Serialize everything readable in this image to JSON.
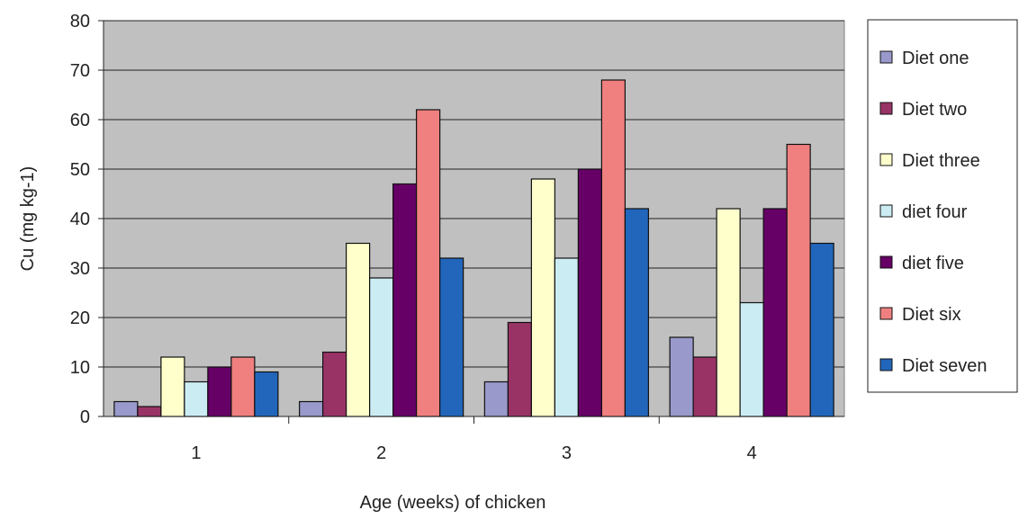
{
  "chart_data": {
    "type": "bar",
    "title": "",
    "xlabel": "Age (weeks) of chicken",
    "ylabel": "Cu (mg kg-1)",
    "ylim": [
      0,
      80
    ],
    "yticks": [
      0,
      10,
      20,
      30,
      40,
      50,
      60,
      70,
      80
    ],
    "categories": [
      "1",
      "2",
      "3",
      "4"
    ],
    "grid": true,
    "legend_position": "right",
    "plot_background": "#c0c0c0",
    "series": [
      {
        "name": "Diet one",
        "color": "#9999cc",
        "values": [
          3,
          3,
          7,
          16
        ]
      },
      {
        "name": "Diet two",
        "color": "#993366",
        "values": [
          2,
          13,
          19,
          12
        ]
      },
      {
        "name": "Diet three",
        "color": "#ffffcc",
        "values": [
          12,
          35,
          48,
          42
        ]
      },
      {
        "name": "diet four",
        "color": "#ccecf4",
        "values": [
          7,
          28,
          32,
          23
        ]
      },
      {
        "name": "diet five",
        "color": "#660066",
        "values": [
          10,
          47,
          50,
          42
        ]
      },
      {
        "name": "Diet six",
        "color": "#f08080",
        "values": [
          12,
          62,
          68,
          55
        ]
      },
      {
        "name": "Diet seven",
        "color": "#2266bb",
        "values": [
          9,
          32,
          42,
          35
        ]
      }
    ]
  }
}
